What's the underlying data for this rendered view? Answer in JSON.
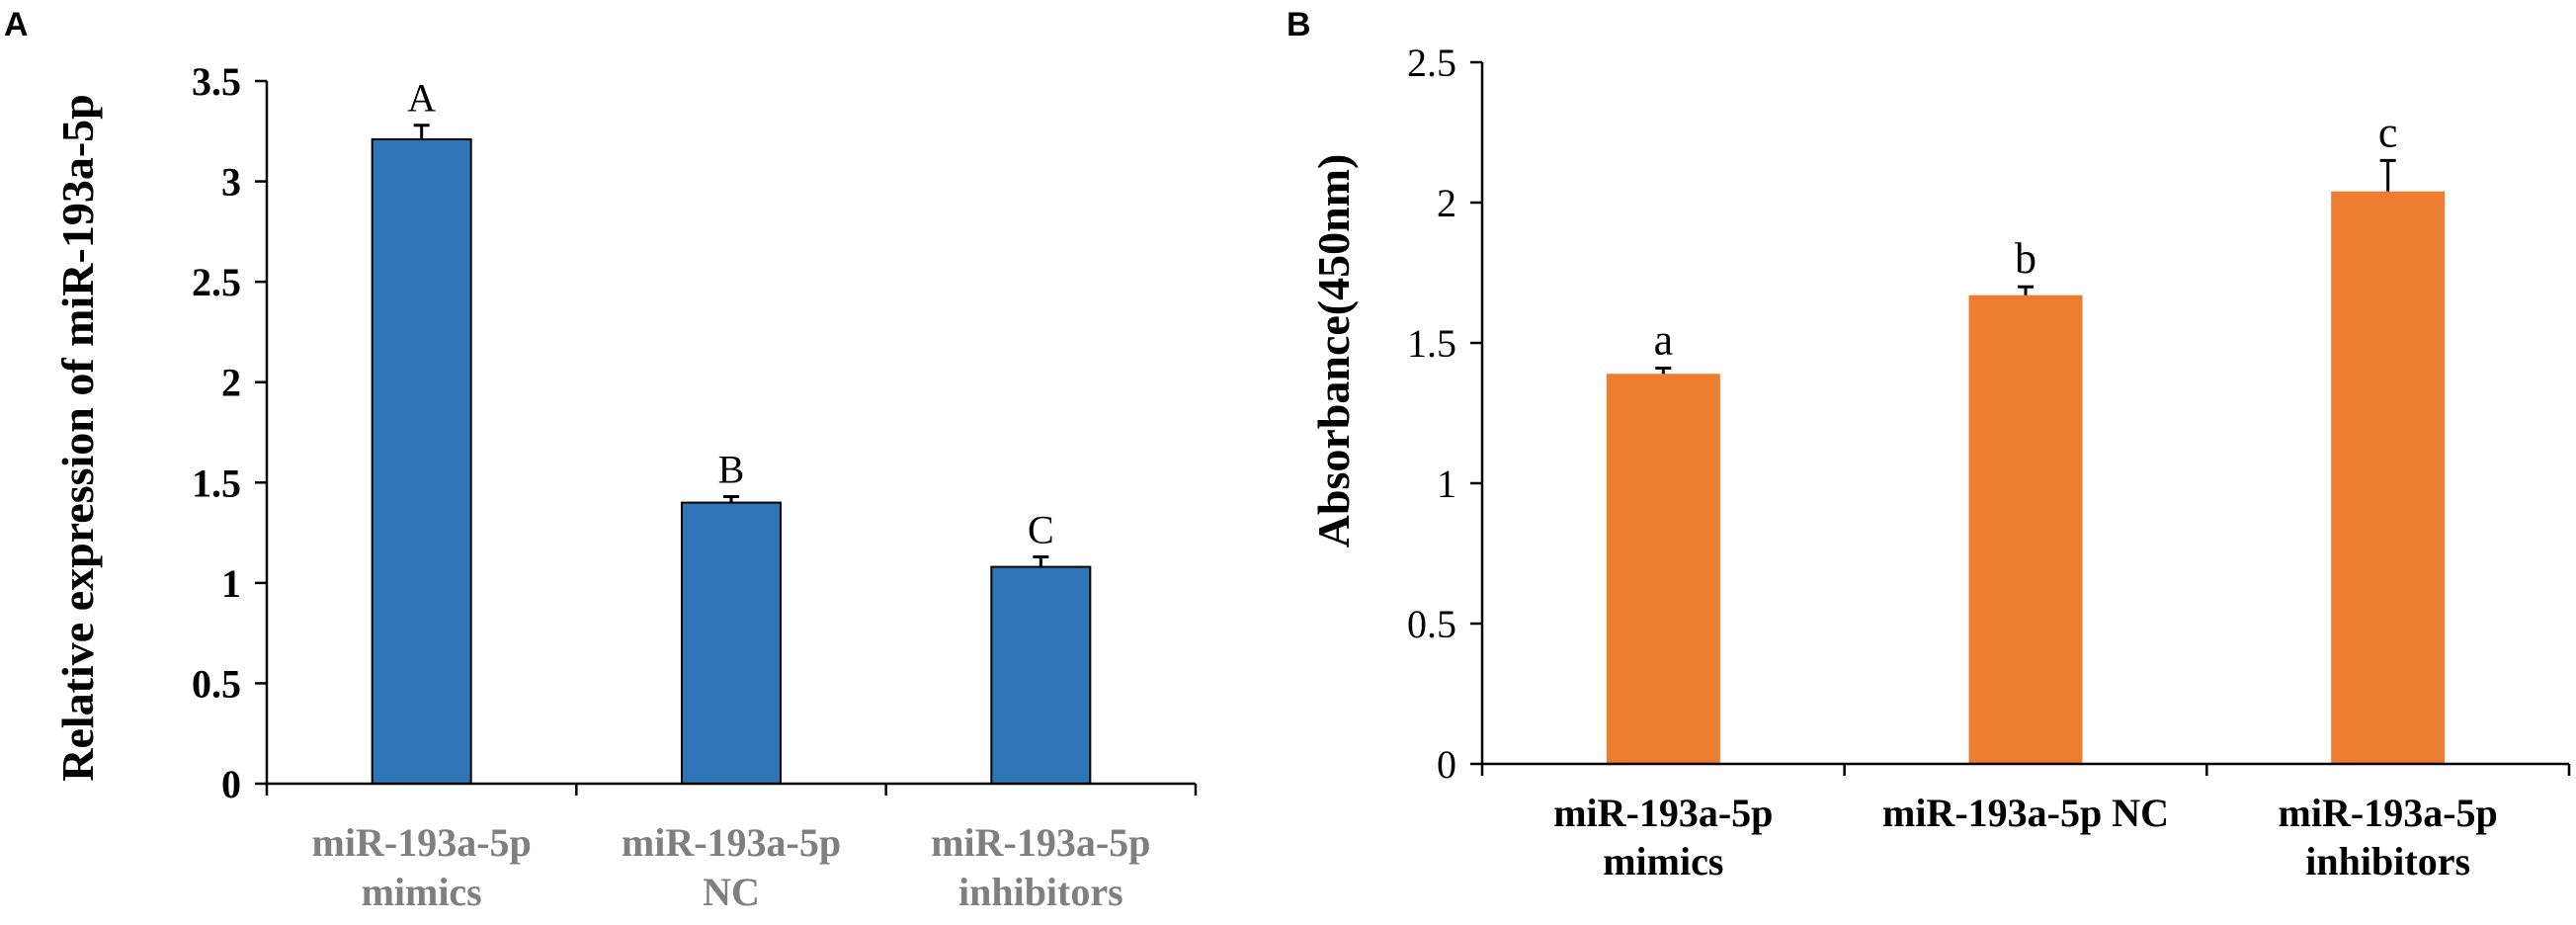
{
  "chart_data": [
    {
      "panel_label": "A",
      "type": "bar",
      "title": "",
      "xlabel": "",
      "ylabel": "Relative expression of miR-193a-5p",
      "categories": [
        [
          "miR-193a-5p",
          "mimics"
        ],
        [
          "miR-193a-5p",
          "NC"
        ],
        [
          "miR-193a-5p",
          "inhibitors"
        ]
      ],
      "values": [
        3.21,
        1.4,
        1.08
      ],
      "errors": [
        0.07,
        0.03,
        0.05
      ],
      "significance": [
        "A",
        "B",
        "C"
      ],
      "ylim": [
        0,
        3.5
      ],
      "yticks": [
        "0",
        "0.5",
        "1",
        "1.5",
        "2",
        "2.5",
        "3",
        "3.5"
      ],
      "grid": false,
      "colors": {
        "bar": "#2E75B6",
        "bar_edge": "#000000",
        "category_text": "#7F7F7F"
      }
    },
    {
      "panel_label": "B",
      "type": "bar",
      "title": "",
      "xlabel": "",
      "ylabel": "Absorbance(450nm)",
      "categories": [
        [
          "miR-193a-5p",
          "mimics"
        ],
        [
          "miR-193a-5p NC"
        ],
        [
          "miR-193a-5p",
          "inhibitors"
        ]
      ],
      "values": [
        1.39,
        1.67,
        2.04
      ],
      "errors": [
        0.02,
        0.03,
        0.11
      ],
      "significance": [
        "a",
        "b",
        "c"
      ],
      "ylim": [
        0,
        2.5
      ],
      "yticks": [
        "0",
        "0.5",
        "1",
        "1.5",
        "2",
        "2.5"
      ],
      "grid": false,
      "colors": {
        "bar": "#ED7D31",
        "bar_edge": "none",
        "category_text": "#000000"
      }
    }
  ]
}
